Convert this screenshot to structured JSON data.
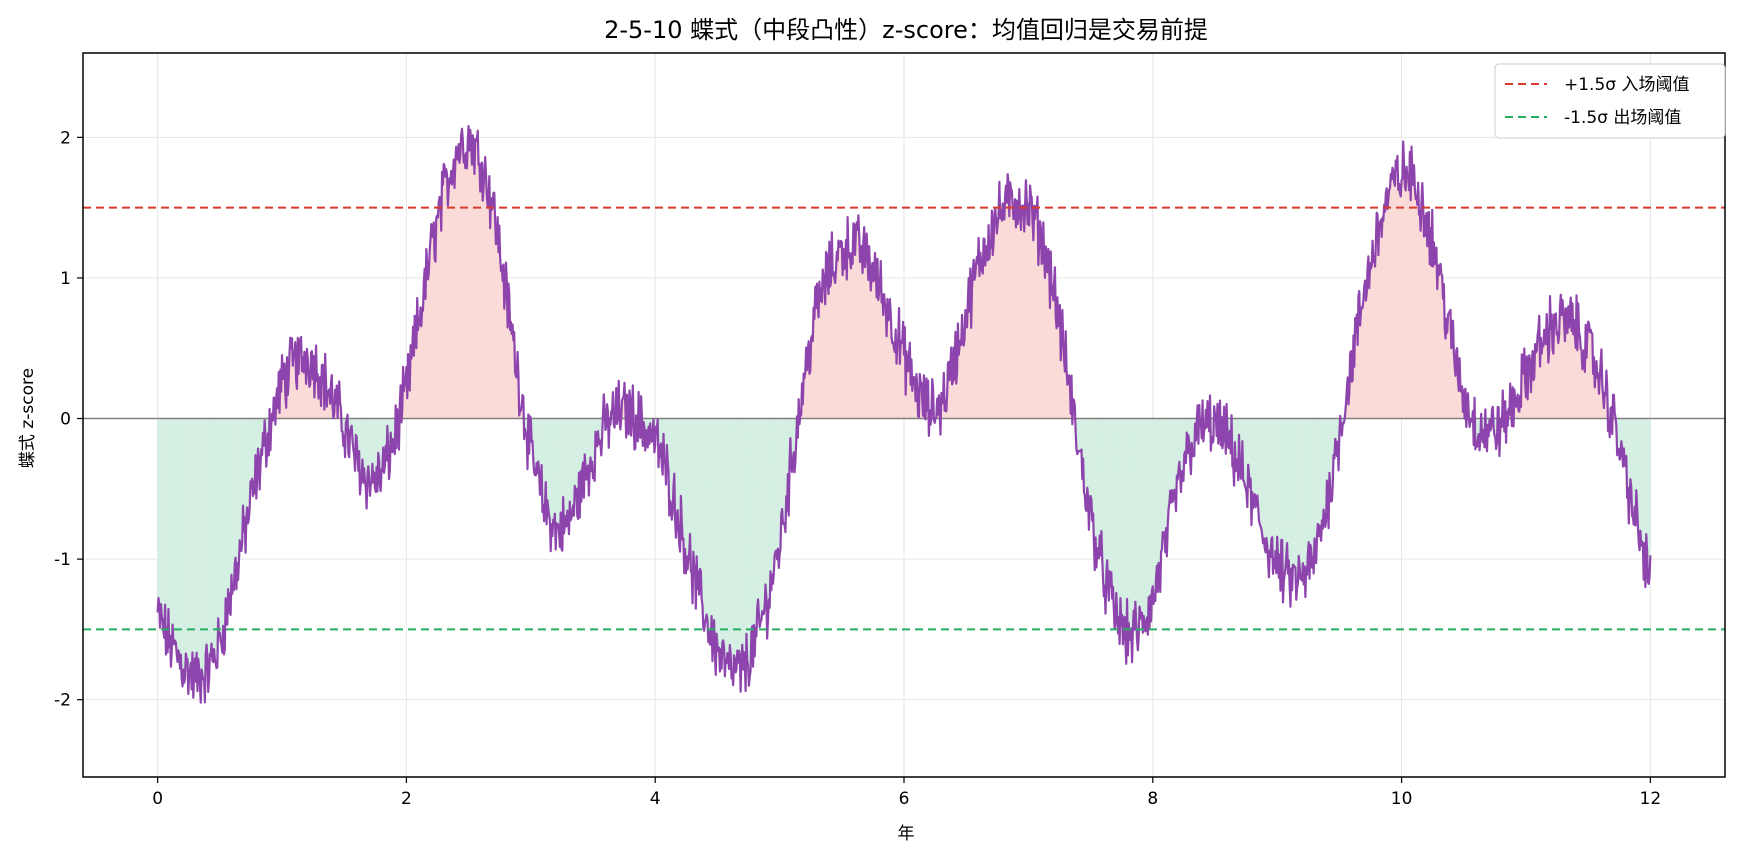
{
  "chart_data": {
    "type": "line",
    "title": "2-5-10 蝶式（中段凸性）z-score：均值回归是交易前提",
    "xlabel": "年",
    "ylabel": "蝶式 z-score",
    "xlim": [
      -0.6,
      12.6
    ],
    "ylim": [
      -2.55,
      2.6
    ],
    "x_ticks": [
      0,
      2,
      4,
      6,
      8,
      10,
      12
    ],
    "y_ticks": [
      -2,
      -1,
      0,
      1,
      2
    ],
    "x_tick_labels": [
      "0",
      "2",
      "4",
      "6",
      "8",
      "10",
      "12"
    ],
    "y_tick_labels": [
      "-2",
      "-1",
      "0",
      "1",
      "2"
    ],
    "grid": true,
    "legend_position": "top-right",
    "colors": {
      "series": "#8e44ad",
      "positive_fill": "#fadbd8",
      "negative_fill": "#d5efe3",
      "upper_threshold": "#d83a2c",
      "lower_threshold": "#27ae60",
      "zero_line": "#808080",
      "grid": "#e6e6e6"
    },
    "thresholds": [
      {
        "name": "+1.5σ 入场阈值",
        "value": 1.5
      },
      {
        "name": "-1.5σ 出场阈值",
        "value": -1.5
      }
    ],
    "zero_line": 0,
    "noise_amplitude": 0.3,
    "series": [
      {
        "x": [
          0,
          0.1,
          0.2,
          0.3,
          0.4,
          0.5,
          0.6,
          0.7,
          0.8,
          0.9,
          1.0,
          1.1,
          1.2,
          1.3,
          1.4,
          1.5,
          1.6,
          1.7,
          1.8,
          1.9,
          2.0,
          2.1,
          2.2,
          2.3,
          2.4,
          2.5,
          2.6,
          2.7,
          2.8,
          2.9,
          3.0,
          3.1,
          3.2,
          3.3,
          3.4,
          3.5,
          3.6,
          3.7,
          3.8,
          3.9,
          4.0,
          4.1,
          4.2,
          4.3,
          4.4,
          4.5,
          4.6,
          4.7,
          4.8,
          4.9,
          5.0,
          5.1,
          5.2,
          5.3,
          5.4,
          5.5,
          5.6,
          5.7,
          5.8,
          5.9,
          6.0,
          6.1,
          6.2,
          6.3,
          6.4,
          6.5,
          6.6,
          6.7,
          6.8,
          6.9,
          7.0,
          7.1,
          7.2,
          7.3,
          7.4,
          7.5,
          7.6,
          7.7,
          7.8,
          7.9,
          8.0,
          8.1,
          8.2,
          8.3,
          8.4,
          8.5,
          8.6,
          8.7,
          8.8,
          8.9,
          9.0,
          9.1,
          9.2,
          9.3,
          9.4,
          9.5,
          9.6,
          9.7,
          9.8,
          9.9,
          10.0,
          10.1,
          10.2,
          10.3,
          10.4,
          10.5,
          10.6,
          10.7,
          10.8,
          10.9,
          11.0,
          11.1,
          11.2,
          11.3,
          11.4,
          11.5,
          11.6,
          11.7,
          11.8,
          11.9,
          12.0
        ],
        "values": [
          -1.4,
          -1.6,
          -1.75,
          -1.85,
          -1.8,
          -1.6,
          -1.2,
          -0.8,
          -0.4,
          -0.05,
          0.25,
          0.4,
          0.45,
          0.35,
          0.15,
          -0.05,
          -0.3,
          -0.45,
          -0.4,
          -0.15,
          0.2,
          0.7,
          1.2,
          1.6,
          1.9,
          2.0,
          1.85,
          1.5,
          0.9,
          0.3,
          -0.25,
          -0.6,
          -0.8,
          -0.75,
          -0.5,
          -0.25,
          -0.05,
          0.05,
          0.05,
          -0.05,
          -0.15,
          -0.4,
          -0.75,
          -1.1,
          -1.4,
          -1.65,
          -1.8,
          -1.8,
          -1.6,
          -1.3,
          -0.9,
          -0.3,
          0.3,
          0.8,
          1.05,
          1.2,
          1.25,
          1.15,
          0.95,
          0.7,
          0.45,
          0.2,
          0.05,
          0.1,
          0.4,
          0.75,
          1.1,
          1.35,
          1.5,
          1.55,
          1.5,
          1.3,
          0.95,
          0.4,
          -0.2,
          -0.7,
          -1.1,
          -1.4,
          -1.55,
          -1.5,
          -1.3,
          -0.9,
          -0.5,
          -0.2,
          -0.05,
          -0.05,
          -0.15,
          -0.35,
          -0.6,
          -0.85,
          -1.05,
          -1.15,
          -1.15,
          -1.0,
          -0.6,
          -0.1,
          0.4,
          0.9,
          1.3,
          1.6,
          1.75,
          1.7,
          1.45,
          1.05,
          0.55,
          0.15,
          -0.05,
          -0.1,
          -0.05,
          0.1,
          0.3,
          0.5,
          0.65,
          0.7,
          0.65,
          0.5,
          0.3,
          0.0,
          -0.4,
          -0.8,
          -1.15
        ]
      }
    ]
  }
}
